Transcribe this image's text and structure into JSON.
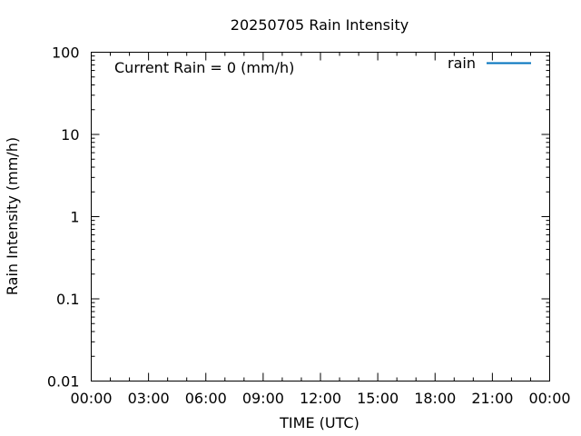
{
  "chart_data": {
    "type": "line",
    "title": "20250705 Rain Intensity",
    "xlabel": "TIME (UTC)",
    "ylabel": "Rain Intensity (mm/h)",
    "x_scale": "time",
    "y_scale": "log",
    "xlim": [
      "00:00",
      "24:00"
    ],
    "ylim": [
      0.01,
      100
    ],
    "x_ticks": [
      "00:00",
      "03:00",
      "06:00",
      "09:00",
      "12:00",
      "15:00",
      "18:00",
      "21:00",
      "00:00"
    ],
    "y_ticks": [
      "0.01",
      "0.1",
      "1",
      "10",
      "100"
    ],
    "y_tick_values": [
      0.01,
      0.1,
      1,
      10,
      100
    ],
    "annotation": "Current Rain = 0 (mm/h)",
    "grid": false,
    "legend_position": "top-right",
    "series": [
      {
        "name": "rain",
        "color": "#0072bd",
        "x": [],
        "values": []
      }
    ]
  }
}
